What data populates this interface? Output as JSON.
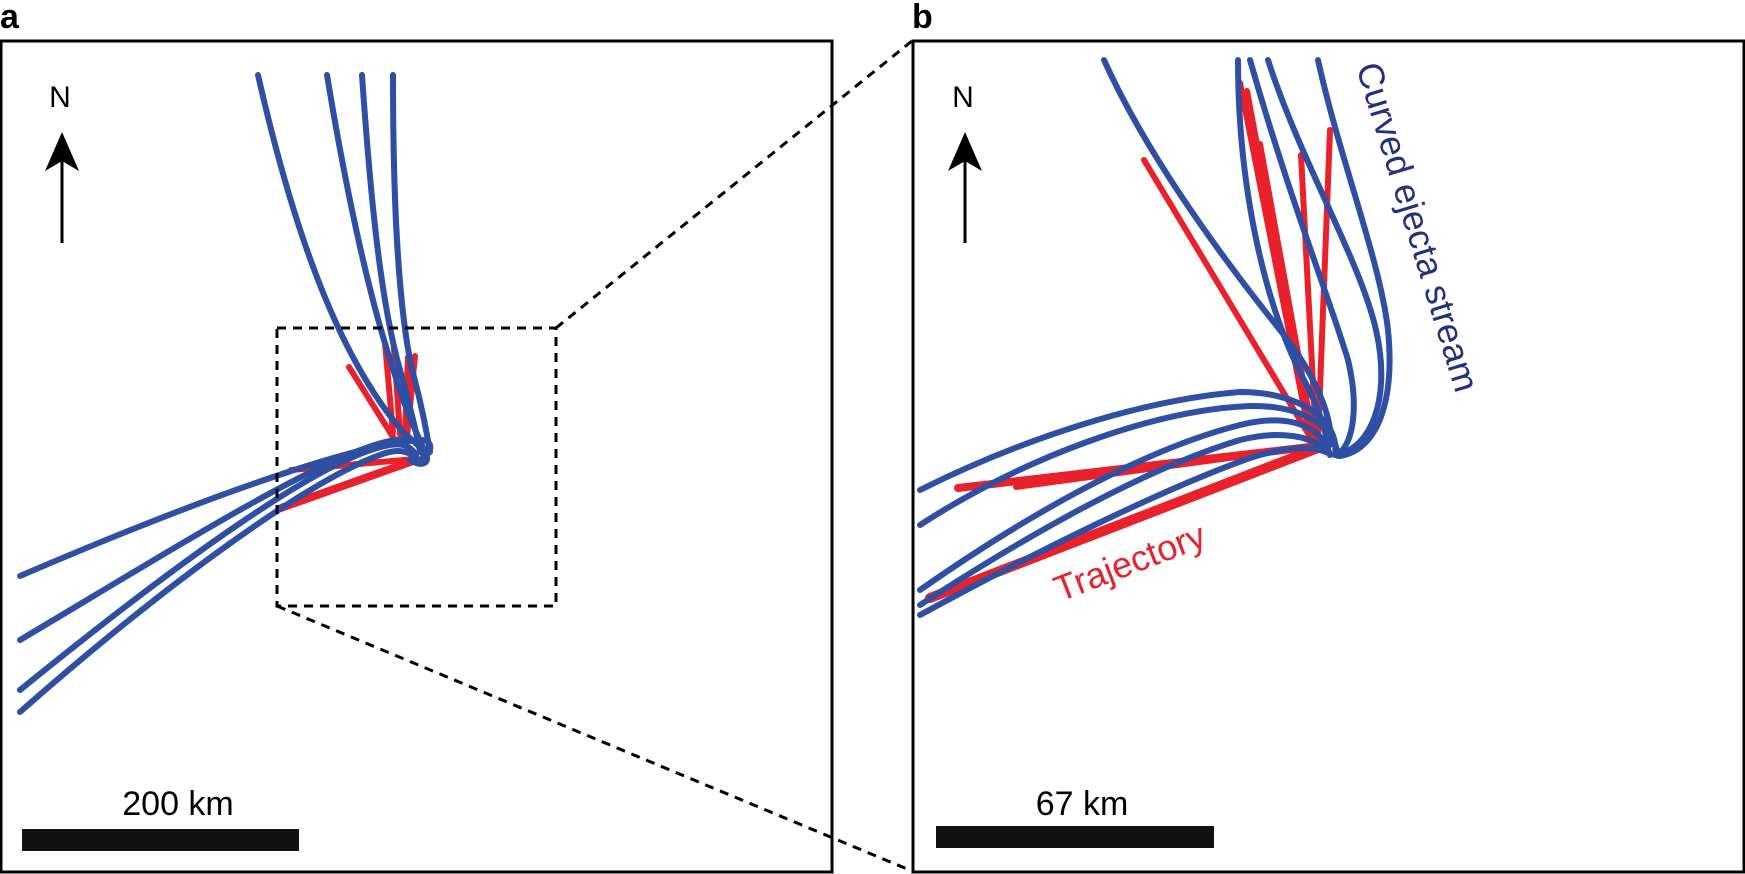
{
  "panels": [
    {
      "letter": "a",
      "north": "N",
      "scale_label": "200 km"
    },
    {
      "letter": "b",
      "north": "N",
      "scale_label": "67 km"
    }
  ],
  "annotations": {
    "blue": "Curved ejecta stream",
    "red": "Trajectory"
  },
  "colors": {
    "blue": "#2e4fa3",
    "blue_text": "#23307f",
    "red": "#e8212b",
    "frame": "#000000"
  },
  "icons": [
    "north-arrow-icon"
  ]
}
